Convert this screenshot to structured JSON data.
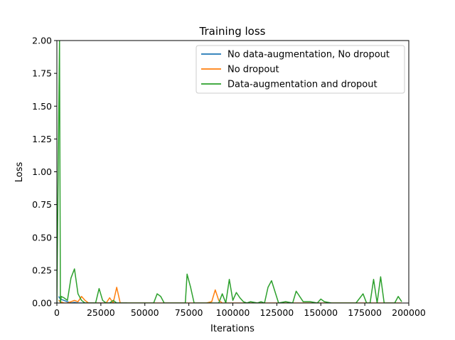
{
  "chart_data": {
    "type": "line",
    "title": "Training loss",
    "xlabel": "Iterations",
    "ylabel": "Loss",
    "xlim": [
      0,
      200000
    ],
    "ylim": [
      0,
      2.0
    ],
    "xticks": [
      0,
      25000,
      50000,
      75000,
      100000,
      125000,
      150000,
      175000,
      200000
    ],
    "xtick_labels": [
      "0",
      "25000",
      "50000",
      "75000",
      "100000",
      "125000",
      "150000",
      "175000",
      "200000"
    ],
    "yticks": [
      0,
      0.25,
      0.5,
      0.75,
      1.0,
      1.25,
      1.5,
      1.75,
      2.0
    ],
    "ytick_labels": [
      "0.00",
      "0.25",
      "0.50",
      "0.75",
      "1.00",
      "1.25",
      "1.50",
      "1.75",
      "2.00"
    ],
    "grid": false,
    "legend_position": "top-right",
    "series": [
      {
        "name": "No data-augmentation, No dropout",
        "color": "#1f77b4",
        "x": [
          1000,
          2000,
          4000,
          6000,
          8000,
          10000,
          12000,
          15000,
          20000,
          25000,
          30000,
          35000,
          40000
        ],
        "y": [
          0.05,
          0.03,
          0.02,
          0.01,
          0.0,
          0.005,
          0.0,
          0.0,
          0.0,
          0.0,
          0.0,
          0.0,
          0.0
        ]
      },
      {
        "name": "No dropout",
        "color": "#ff7f0e",
        "x": [
          1000,
          2000,
          4000,
          6000,
          8000,
          10000,
          12000,
          14000,
          16000,
          18000,
          20000,
          22000,
          24000,
          26000,
          28000,
          30000,
          32000,
          34000,
          36000,
          40000,
          45000,
          50000,
          55000,
          60000,
          65000,
          70000,
          75000,
          80000,
          85000,
          88000,
          90000,
          92000,
          94000,
          96000,
          100000,
          110000,
          120000,
          130000,
          140000,
          150000,
          160000,
          170000,
          180000,
          190000,
          196000
        ],
        "y": [
          0.02,
          0.01,
          0.0,
          0.0,
          0.01,
          0.02,
          0.01,
          0.05,
          0.02,
          0.0,
          0.0,
          0.0,
          0.0,
          0.0,
          0.0,
          0.04,
          0.0,
          0.12,
          0.0,
          0.0,
          0.0,
          0.0,
          0.0,
          0.0,
          0.0,
          0.0,
          0.0,
          0.0,
          0.0,
          0.01,
          0.1,
          0.02,
          0.0,
          0.0,
          0.0,
          0.0,
          0.0,
          0.0,
          0.0,
          0.0,
          0.0,
          0.0,
          0.0,
          0.0,
          0.0
        ]
      },
      {
        "name": "Data-augmentation and dropout",
        "color": "#2ca02c",
        "x": [
          0,
          1500,
          2000,
          2500,
          4000,
          6000,
          8000,
          10000,
          12000,
          14000,
          16000,
          18000,
          20000,
          22000,
          24000,
          26000,
          28000,
          30000,
          32000,
          34000,
          36000,
          40000,
          45000,
          50000,
          53000,
          55000,
          57000,
          59000,
          61000,
          65000,
          70000,
          73000,
          74000,
          76000,
          78000,
          80000,
          85000,
          88000,
          90000,
          92000,
          94000,
          96000,
          98000,
          100000,
          102000,
          104000,
          106000,
          108000,
          110000,
          114000,
          116000,
          118000,
          120000,
          122000,
          126000,
          130000,
          134000,
          136000,
          140000,
          144000,
          148000,
          150000,
          152000,
          156000,
          160000,
          166000,
          170000,
          174000,
          176000,
          178000,
          180000,
          182000,
          184000,
          186000,
          188000,
          192000,
          194000,
          196000
        ],
        "y": [
          0.0,
          2.0,
          0.0,
          0.05,
          0.04,
          0.02,
          0.19,
          0.26,
          0.07,
          0.02,
          0.0,
          0.0,
          0.0,
          0.0,
          0.11,
          0.02,
          0.0,
          0.0,
          0.02,
          0.0,
          0.0,
          0.0,
          0.0,
          0.0,
          0.0,
          0.0,
          0.07,
          0.05,
          0.0,
          0.0,
          0.0,
          0.0,
          0.22,
          0.12,
          0.0,
          0.0,
          0.0,
          0.0,
          0.0,
          0.0,
          0.07,
          0.0,
          0.18,
          0.02,
          0.08,
          0.04,
          0.01,
          0.0,
          0.01,
          0.0,
          0.01,
          0.0,
          0.12,
          0.17,
          0.0,
          0.01,
          0.0,
          0.09,
          0.01,
          0.01,
          0.0,
          0.03,
          0.01,
          0.0,
          0.0,
          0.0,
          0.0,
          0.07,
          0.0,
          0.0,
          0.18,
          0.0,
          0.2,
          0.0,
          0.0,
          0.0,
          0.05,
          0.01
        ]
      }
    ]
  }
}
